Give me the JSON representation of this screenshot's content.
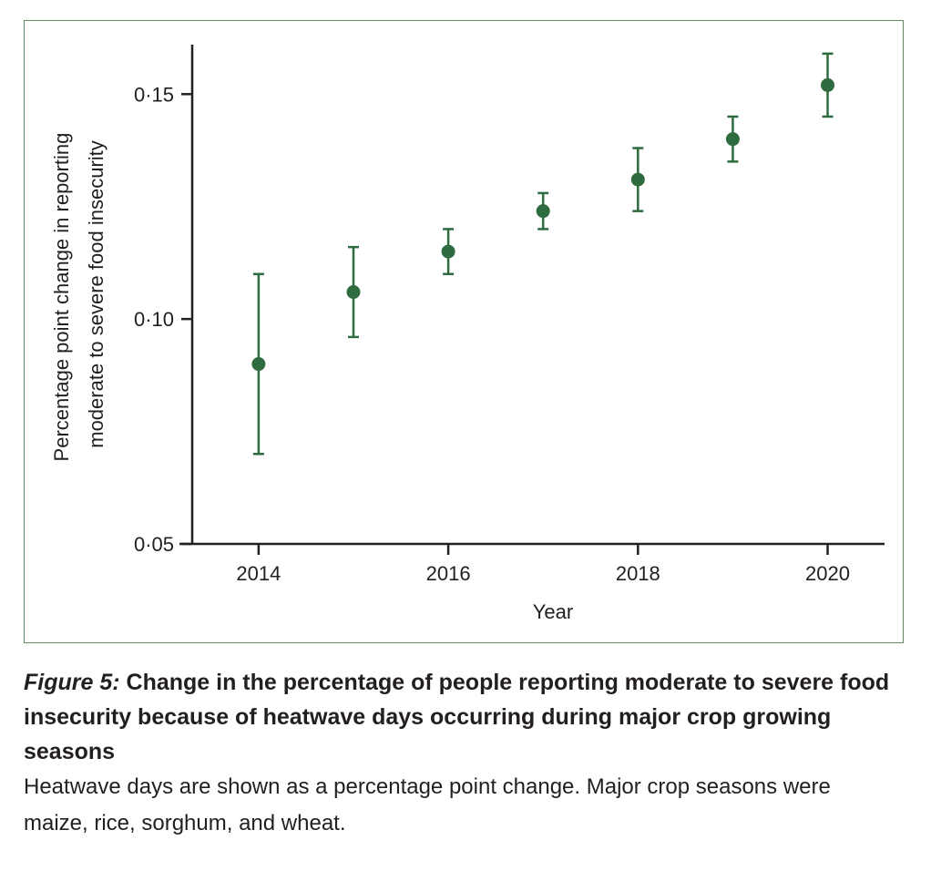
{
  "figure": {
    "label": "Figure 5:",
    "title": " Change in the percentage of people reporting moderate to severe food insecurity because of heatwave days occurring during major crop growing seasons",
    "caption": "Heatwave days are shown as a percentage point change. Major crop seasons were maize, rice, sorghum, and wheat."
  },
  "colors": {
    "marker": "#2e6b3e",
    "frame": "#5c8a64",
    "axis": "#231f20"
  },
  "chart_data": {
    "type": "scatter",
    "xlabel": "Year",
    "ylabel_lines": [
      "Percentage point change in reporting",
      "moderate to severe food insecurity"
    ],
    "xlim": [
      2013.3,
      2020.6
    ],
    "ylim": [
      0.05,
      0.161
    ],
    "x_ticks": [
      2014,
      2016,
      2018,
      2020
    ],
    "x_tick_labels": [
      "2014",
      "2016",
      "2018",
      "2020"
    ],
    "y_ticks": [
      0.05,
      0.1,
      0.15
    ],
    "y_tick_labels": [
      "0·05",
      "0·10",
      "0·15"
    ],
    "grid": false,
    "legend": false,
    "points": [
      {
        "x": 2014,
        "y": 0.09,
        "lower": 0.07,
        "upper": 0.11
      },
      {
        "x": 2015,
        "y": 0.106,
        "lower": 0.096,
        "upper": 0.116
      },
      {
        "x": 2016,
        "y": 0.115,
        "lower": 0.11,
        "upper": 0.12
      },
      {
        "x": 2017,
        "y": 0.124,
        "lower": 0.12,
        "upper": 0.128
      },
      {
        "x": 2018,
        "y": 0.131,
        "lower": 0.124,
        "upper": 0.138
      },
      {
        "x": 2019,
        "y": 0.14,
        "lower": 0.135,
        "upper": 0.145
      },
      {
        "x": 2020,
        "y": 0.152,
        "lower": 0.145,
        "upper": 0.159
      }
    ]
  }
}
